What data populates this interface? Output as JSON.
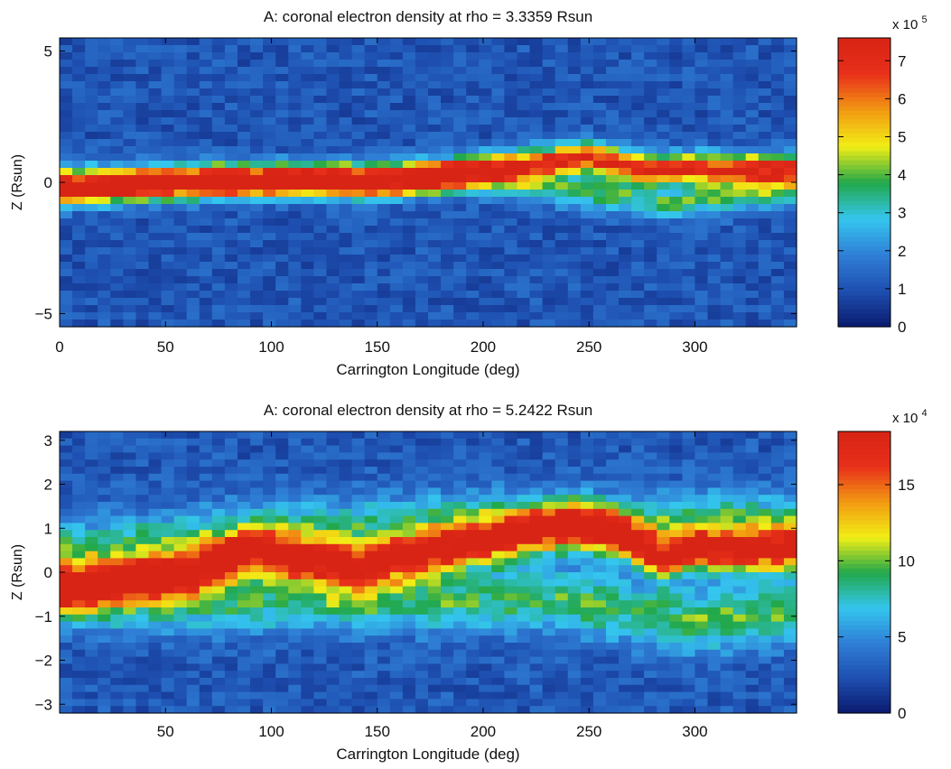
{
  "colors": {
    "colormap": [
      "#0a1a6e",
      "#1e4fb0",
      "#2f7fd6",
      "#34c6ee",
      "#22a84a",
      "#f2ee16",
      "#f29a12",
      "#e8301a",
      "#d82415"
    ],
    "axis": "#000000"
  },
  "chart_data": [
    {
      "type": "heatmap",
      "title": "A: coronal electron density at rho = 3.3359 Rsun",
      "xlabel": "Carrington Longitude (deg)",
      "ylabel": "Z (Rsun)",
      "xlim": [
        0,
        348
      ],
      "ylim": [
        -5.5,
        5.5
      ],
      "xticks": [
        0,
        50,
        100,
        150,
        200,
        250,
        300
      ],
      "yticks": [
        -5,
        0,
        5
      ],
      "ytick_labels": [
        "−5",
        "0",
        "5"
      ],
      "colorbar": {
        "range": [
          0,
          7.6
        ],
        "ticks": [
          0,
          1,
          2,
          3,
          4,
          5,
          6,
          7
        ],
        "exponent_label": "x 10",
        "exponent": "5"
      },
      "background_level": 1.1,
      "features": [
        {
          "name": "streamer belt",
          "z_center": [
            [
              0,
              -0.35
            ],
            [
              60,
              0.0
            ],
            [
              120,
              0.05
            ],
            [
              150,
              0.0
            ],
            [
              200,
              0.5
            ],
            [
              250,
              0.95
            ],
            [
              275,
              0.5
            ]
          ],
          "peak": 7.2,
          "width": 0.55
        },
        {
          "name": "southern extension",
          "z_center": [
            [
              200,
              0.1
            ],
            [
              240,
              -0.3
            ],
            [
              290,
              -0.8
            ],
            [
              348,
              -0.2
            ]
          ],
          "peak": 3.0,
          "width": 0.6
        }
      ]
    },
    {
      "type": "heatmap",
      "title": "A: coronal electron density at rho = 5.2422 Rsun",
      "xlabel": "Carrington Longitude (deg)",
      "ylabel": "Z (Rsun)",
      "xlim": [
        0,
        348
      ],
      "ylim": [
        -3.2,
        3.2
      ],
      "xticks": [
        50,
        100,
        150,
        200,
        250,
        300
      ],
      "yticks": [
        -3,
        -2,
        -1,
        0,
        1,
        2,
        3
      ],
      "ytick_labels": [
        "−3",
        "−2",
        "−1",
        "0",
        "1",
        "2",
        "3"
      ],
      "colorbar": {
        "range": [
          0,
          18.5
        ],
        "ticks": [
          0,
          5,
          10,
          15
        ],
        "exponent_label": "x 10",
        "exponent": "4"
      },
      "background_level": 2.8,
      "features": [
        {
          "name": "streamer belt",
          "z_center": [
            [
              0,
              -0.4
            ],
            [
              60,
              0.0
            ],
            [
              90,
              0.5
            ],
            [
              140,
              0.1
            ],
            [
              180,
              0.5
            ],
            [
              240,
              1.1
            ],
            [
              262,
              0.9
            ],
            [
              285,
              0.3
            ],
            [
              300,
              0.5
            ]
          ],
          "peak": 17.5,
          "width": 0.45
        },
        {
          "name": "northern halo",
          "z_center": [
            [
              20,
              0.5
            ],
            [
              100,
              0.9
            ],
            [
              200,
              1.1
            ]
          ],
          "peak": 7.0,
          "width": 0.7
        },
        {
          "name": "southern halo",
          "z_center": [
            [
              230,
              -0.6
            ],
            [
              300,
              -1.1
            ],
            [
              348,
              -0.9
            ]
          ],
          "peak": 7.5,
          "width": 0.7
        }
      ]
    }
  ]
}
